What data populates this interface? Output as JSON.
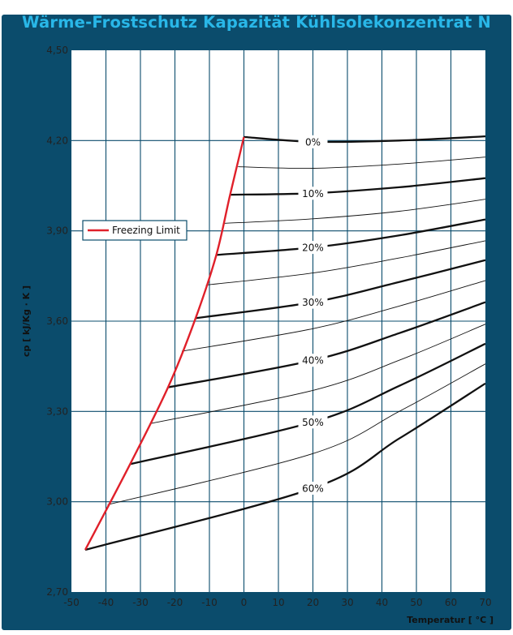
{
  "chart_data": {
    "type": "line",
    "title": "Wärme-Frostschutz Kapazität Kühlsolekonzentrat N",
    "xlabel": "Temperatur [ °C ]",
    "ylabel": "cp [ kJ/Kg · K ]",
    "xlim": [
      -50,
      70
    ],
    "ylim": [
      2.7,
      4.5
    ],
    "x_ticks": [
      "-50",
      "-40",
      "-30",
      "-20",
      "-10",
      "0",
      "10",
      "20",
      "30",
      "40",
      "50",
      "60",
      "70"
    ],
    "y_ticks": [
      "2,70",
      "3,00",
      "3,30",
      "3,60",
      "3,90",
      "4,20",
      "4,50"
    ],
    "grid": true,
    "legend": {
      "position": "left",
      "entries": [
        {
          "name": "Freezing Limit",
          "color": "#e0202a"
        }
      ]
    },
    "colors": {
      "frame": "#0b4c6c",
      "title": "#29b7e8",
      "grid": "#0b4c6c",
      "freezing": "#e0202a",
      "curve": "#111111"
    },
    "freezing_limit": [
      {
        "x": 0,
        "y": 4.212
      },
      {
        "x": -4,
        "y": 4.02
      },
      {
        "x": -8,
        "y": 3.82
      },
      {
        "x": -14,
        "y": 3.61
      },
      {
        "x": -22,
        "y": 3.38
      },
      {
        "x": -33,
        "y": 3.125
      },
      {
        "x": -46,
        "y": 2.84
      }
    ],
    "series": [
      {
        "label": "0%",
        "weight": "major",
        "points": [
          {
            "x": 0,
            "y": 4.212
          },
          {
            "x": 20,
            "y": 4.196
          },
          {
            "x": 45,
            "y": 4.2
          },
          {
            "x": 70,
            "y": 4.214
          }
        ]
      },
      {
        "label": "",
        "weight": "minor",
        "points": [
          {
            "x": -1.7,
            "y": 4.113
          },
          {
            "x": 20,
            "y": 4.108
          },
          {
            "x": 45,
            "y": 4.122
          },
          {
            "x": 70,
            "y": 4.145
          }
        ]
      },
      {
        "label": "10%",
        "weight": "major",
        "points": [
          {
            "x": -4,
            "y": 4.02
          },
          {
            "x": 20,
            "y": 4.025
          },
          {
            "x": 45,
            "y": 4.045
          },
          {
            "x": 70,
            "y": 4.075
          }
        ]
      },
      {
        "label": "",
        "weight": "minor",
        "points": [
          {
            "x": -6,
            "y": 3.925
          },
          {
            "x": 20,
            "y": 3.94
          },
          {
            "x": 45,
            "y": 3.965
          },
          {
            "x": 70,
            "y": 4.005
          }
        ]
      },
      {
        "label": "20%",
        "weight": "major",
        "points": [
          {
            "x": -8,
            "y": 3.82
          },
          {
            "x": 20,
            "y": 3.845
          },
          {
            "x": 45,
            "y": 3.885
          },
          {
            "x": 70,
            "y": 3.938
          }
        ]
      },
      {
        "label": "",
        "weight": "minor",
        "points": [
          {
            "x": -11,
            "y": 3.72
          },
          {
            "x": 20,
            "y": 3.76
          },
          {
            "x": 45,
            "y": 3.81
          },
          {
            "x": 70,
            "y": 3.867
          }
        ]
      },
      {
        "label": "30%",
        "weight": "major",
        "points": [
          {
            "x": -14,
            "y": 3.61
          },
          {
            "x": 20,
            "y": 3.663
          },
          {
            "x": 45,
            "y": 3.73
          },
          {
            "x": 70,
            "y": 3.803
          }
        ]
      },
      {
        "label": "",
        "weight": "minor",
        "points": [
          {
            "x": -18,
            "y": 3.5
          },
          {
            "x": 20,
            "y": 3.575
          },
          {
            "x": 45,
            "y": 3.65
          },
          {
            "x": 70,
            "y": 3.735
          }
        ]
      },
      {
        "label": "40%",
        "weight": "major",
        "points": [
          {
            "x": -22,
            "y": 3.38
          },
          {
            "x": 20,
            "y": 3.47
          },
          {
            "x": 45,
            "y": 3.56
          },
          {
            "x": 70,
            "y": 3.663
          }
        ]
      },
      {
        "label": "",
        "weight": "minor",
        "points": [
          {
            "x": -27,
            "y": 3.26
          },
          {
            "x": 20,
            "y": 3.37
          },
          {
            "x": 45,
            "y": 3.47
          },
          {
            "x": 70,
            "y": 3.59
          }
        ]
      },
      {
        "label": "50%",
        "weight": "major",
        "points": [
          {
            "x": -33,
            "y": 3.125
          },
          {
            "x": 20,
            "y": 3.265
          },
          {
            "x": 45,
            "y": 3.385
          },
          {
            "x": 70,
            "y": 3.525
          }
        ]
      },
      {
        "label": "",
        "weight": "minor",
        "points": [
          {
            "x": -39.5,
            "y": 2.99
          },
          {
            "x": 20,
            "y": 3.16
          },
          {
            "x": 45,
            "y": 3.3
          },
          {
            "x": 70,
            "y": 3.458
          }
        ]
      },
      {
        "label": "60%",
        "weight": "major",
        "points": [
          {
            "x": -46,
            "y": 2.84
          },
          {
            "x": 20,
            "y": 3.045
          },
          {
            "x": 45,
            "y": 3.21
          },
          {
            "x": 70,
            "y": 3.393
          }
        ]
      }
    ]
  }
}
